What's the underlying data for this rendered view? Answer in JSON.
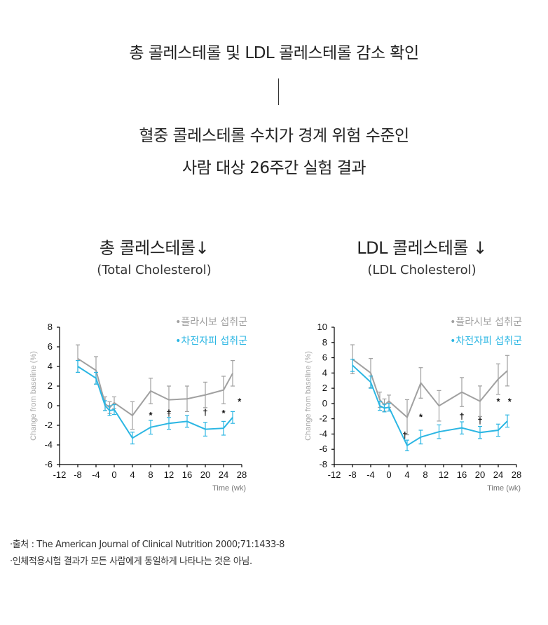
{
  "header": {
    "title": "총 콜레스테롤 및 LDL 콜레스테롤 감소 확인",
    "subtitle_line1": "혈중 콜레스테롤 수치가 경계 위험 수준인",
    "subtitle_line2": "사람 대상 26주간 실험 결과"
  },
  "charts_meta": [
    {
      "title_ko": "총 콜레스테롤↓",
      "title_en": "(Total Cholesterol)"
    },
    {
      "title_ko": "LDL 콜레스테롤 ↓",
      "title_en": "(LDL Cholesterol)"
    }
  ],
  "colors": {
    "placebo": "#a0a0a0",
    "treatment": "#2bb6e3"
  },
  "chart_data": [
    {
      "type": "line",
      "title": "총 콜레스테롤↓ (Total Cholesterol)",
      "xlabel": "Time (wk)",
      "ylabel": "Change from baseline (%)",
      "xlim": [
        -12,
        28
      ],
      "ylim": [
        -6,
        8
      ],
      "xticks": [
        -12,
        -8,
        -4,
        0,
        4,
        8,
        12,
        16,
        20,
        24,
        28
      ],
      "yticks": [
        -6,
        -4,
        -2,
        0,
        2,
        4,
        6,
        8
      ],
      "legend_position": "top-right",
      "series": [
        {
          "name": "•플라시보 섭취군",
          "x": [
            -8,
            -4,
            -2,
            -1,
            0,
            4,
            8,
            12,
            16,
            20,
            24,
            26
          ],
          "y": [
            4.8,
            3.6,
            0.2,
            -0.2,
            0.3,
            -1.0,
            1.5,
            0.6,
            0.7,
            1.1,
            1.6,
            3.3
          ],
          "err": [
            1.4,
            1.4,
            0.7,
            0.6,
            0.6,
            1.4,
            1.3,
            1.4,
            1.3,
            1.3,
            1.4,
            1.3
          ]
        },
        {
          "name": "•차전자피 섭취군",
          "x": [
            -8,
            -4,
            -2,
            -1,
            0,
            4,
            8,
            12,
            16,
            20,
            24,
            26
          ],
          "y": [
            4.0,
            2.8,
            0.0,
            -0.5,
            -0.4,
            -3.3,
            -2.2,
            -1.8,
            -1.6,
            -2.4,
            -2.3,
            -1.2
          ],
          "err": [
            0.6,
            0.6,
            0.5,
            0.5,
            0.5,
            0.6,
            0.7,
            0.6,
            0.6,
            0.7,
            0.7,
            0.6
          ]
        }
      ],
      "annotations": [
        {
          "x": 8,
          "y": -1.0,
          "text": "*"
        },
        {
          "x": 12,
          "y": -0.8,
          "text": "†"
        },
        {
          "x": 20,
          "y": -0.7,
          "text": "†"
        },
        {
          "x": 24,
          "y": -0.8,
          "text": "*"
        },
        {
          "x": 27.5,
          "y": 0.4,
          "text": "*"
        }
      ]
    },
    {
      "type": "line",
      "title": "LDL 콜레스테롤 ↓ (LDL Cholesterol)",
      "xlabel": "Time (wk)",
      "ylabel": "Change from baseline (%)",
      "xlim": [
        -12,
        28
      ],
      "ylim": [
        -8,
        10
      ],
      "xticks": [
        -12,
        -8,
        -4,
        0,
        4,
        8,
        12,
        16,
        20,
        24,
        28
      ],
      "yticks": [
        -8,
        -6,
        -4,
        -2,
        0,
        2,
        4,
        6,
        8,
        10
      ],
      "legend_position": "top-right",
      "series": [
        {
          "name": "•플라시보 섭취군",
          "x": [
            -8,
            -4,
            -2,
            -1,
            0,
            4,
            7,
            11,
            16,
            20,
            24,
            26
          ],
          "y": [
            5.8,
            4.0,
            0.5,
            -0.2,
            0.3,
            -1.8,
            2.7,
            -0.3,
            1.5,
            0.3,
            3.2,
            4.3
          ],
          "err": [
            1.9,
            1.9,
            1.0,
            0.8,
            0.8,
            2.3,
            2.0,
            2.0,
            1.9,
            2.0,
            2.0,
            2.0
          ]
        },
        {
          "name": "•차전자피 섭취군",
          "x": [
            -8,
            -4,
            -2,
            -1,
            0,
            4,
            7,
            11,
            16,
            20,
            24,
            26
          ],
          "y": [
            5.0,
            2.8,
            -0.3,
            -0.6,
            -0.5,
            -5.5,
            -4.4,
            -3.7,
            -3.2,
            -3.8,
            -3.5,
            -2.3
          ],
          "err": [
            0.8,
            0.8,
            0.6,
            0.5,
            0.5,
            0.7,
            0.9,
            0.9,
            0.8,
            0.8,
            0.8,
            0.8
          ]
        }
      ],
      "annotations": [
        {
          "x": 3.5,
          "y": -4.2,
          "text": "†"
        },
        {
          "x": 7,
          "y": -1.8,
          "text": "*"
        },
        {
          "x": 16,
          "y": -1.7,
          "text": "†"
        },
        {
          "x": 20,
          "y": -2.3,
          "text": "†"
        },
        {
          "x": 24,
          "y": 0.2,
          "text": "*"
        },
        {
          "x": 26.5,
          "y": 0.2,
          "text": "*"
        }
      ]
    }
  ],
  "footnotes": {
    "source": "·출처 : The American Journal of Clinical Nutrition 2000;71:1433-8",
    "disclaimer": "·인체적용시험 결과가 모든 사람에게 동일하게 나타나는 것은 아님."
  }
}
